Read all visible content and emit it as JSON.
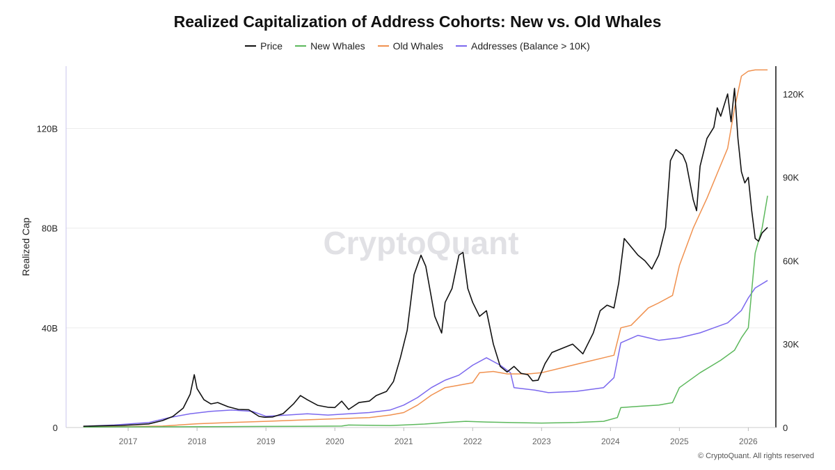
{
  "chart_data": {
    "type": "line",
    "title": "Realized Capitalization of Address Cohorts: New vs. Old Whales",
    "ylabel": "Realized Cap",
    "ylim": [
      0,
      145000000000
    ],
    "y2lim": [
      0,
      130000
    ],
    "y_ticks": [
      {
        "value": 0,
        "label": "0"
      },
      {
        "value": 40000000000,
        "label": "40B"
      },
      {
        "value": 80000000000,
        "label": "80B"
      },
      {
        "value": 120000000000,
        "label": "120B"
      }
    ],
    "y2_ticks": [
      {
        "value": 0,
        "label": "0"
      },
      {
        "value": 30000,
        "label": "30K"
      },
      {
        "value": 60000,
        "label": "60K"
      },
      {
        "value": 90000,
        "label": "90K"
      },
      {
        "value": 120000,
        "label": "120K"
      }
    ],
    "x_range": [
      2016.1,
      2026.4
    ],
    "x_ticks": [
      "2017",
      "2018",
      "2019",
      "2020",
      "2021",
      "2022",
      "2023",
      "2024",
      "2025",
      "2026"
    ],
    "grid": true,
    "legend": "top-center",
    "series": [
      {
        "name": "Price",
        "color": "#111111",
        "axis": "right",
        "x": [
          2016.35,
          2016.6,
          2016.9,
          2017.1,
          2017.3,
          2017.5,
          2017.65,
          2017.8,
          2017.9,
          2017.96,
          2018.0,
          2018.1,
          2018.2,
          2018.3,
          2018.45,
          2018.6,
          2018.75,
          2018.9,
          2018.98,
          2019.1,
          2019.25,
          2019.4,
          2019.5,
          2019.6,
          2019.75,
          2019.9,
          2020.0,
          2020.1,
          2020.2,
          2020.35,
          2020.5,
          2020.6,
          2020.75,
          2020.85,
          2020.95,
          2021.05,
          2021.15,
          2021.25,
          2021.32,
          2021.45,
          2021.55,
          2021.6,
          2021.7,
          2021.8,
          2021.86,
          2021.93,
          2022.0,
          2022.1,
          2022.2,
          2022.3,
          2022.4,
          2022.5,
          2022.6,
          2022.7,
          2022.8,
          2022.87,
          2022.95,
          2023.05,
          2023.15,
          2023.3,
          2023.45,
          2023.6,
          2023.75,
          2023.85,
          2023.95,
          2024.05,
          2024.12,
          2024.2,
          2024.3,
          2024.4,
          2024.5,
          2024.6,
          2024.7,
          2024.8,
          2024.87,
          2024.95,
          2025.05,
          2025.1,
          2025.2,
          2025.25,
          2025.3,
          2025.4,
          2025.5,
          2025.55,
          2025.6,
          2025.7,
          2025.75,
          2025.8,
          2025.85,
          2025.9,
          2025.95,
          2026.0,
          2026.05,
          2026.1,
          2026.15,
          2026.2,
          2026.28
        ],
        "y": [
          450,
          600,
          750,
          1000,
          1300,
          2500,
          4000,
          7000,
          12000,
          19000,
          14000,
          10000,
          8500,
          9000,
          7500,
          6500,
          6400,
          4000,
          3700,
          3800,
          5000,
          8500,
          11500,
          10000,
          8000,
          7300,
          7200,
          9500,
          6500,
          9000,
          9500,
          11500,
          13000,
          16500,
          25000,
          35000,
          55000,
          62000,
          58000,
          40000,
          34000,
          45000,
          50000,
          62000,
          63000,
          50000,
          45000,
          40000,
          42000,
          30000,
          22000,
          20000,
          22000,
          19500,
          19000,
          16800,
          17000,
          23000,
          27000,
          28500,
          30000,
          26500,
          34000,
          42000,
          44000,
          43000,
          52000,
          68000,
          65000,
          62000,
          60000,
          57000,
          62000,
          72000,
          96000,
          100000,
          98000,
          95000,
          82000,
          78000,
          94000,
          104000,
          108000,
          115000,
          112000,
          120000,
          110000,
          122000,
          104000,
          92000,
          88000,
          90000,
          78000,
          68000,
          67000,
          70000,
          72000
        ]
      },
      {
        "name": "New Whales",
        "color": "#5cb85c",
        "axis": "left",
        "x": [
          2016.35,
          2017.5,
          2018.5,
          2019.5,
          2020.1,
          2020.2,
          2020.8,
          2021.0,
          2021.3,
          2021.6,
          2021.9,
          2022.2,
          2022.5,
          2023.0,
          2023.5,
          2023.9,
          2024.1,
          2024.15,
          2024.4,
          2024.7,
          2024.9,
          2025.0,
          2025.3,
          2025.6,
          2025.8,
          2025.9,
          2026.0,
          2026.1,
          2026.2,
          2026.28
        ],
        "y": [
          200000000,
          300000000,
          400000000,
          500000000,
          600000000,
          1000000000,
          800000000,
          1000000000,
          1400000000,
          2000000000,
          2500000000,
          2200000000,
          2000000000,
          1800000000,
          2000000000,
          2500000000,
          4000000000,
          8000000000,
          8500000000,
          9000000000,
          10000000000,
          16000000000,
          22000000000,
          27000000000,
          31000000000,
          36000000000,
          40000000000,
          70000000000,
          80000000000,
          93000000000
        ]
      },
      {
        "name": "Old Whales",
        "color": "#f0914f",
        "axis": "left",
        "x": [
          2016.35,
          2017.0,
          2017.5,
          2018.0,
          2018.5,
          2019.0,
          2019.5,
          2020.0,
          2020.5,
          2020.8,
          2021.0,
          2021.2,
          2021.4,
          2021.6,
          2021.8,
          2022.0,
          2022.1,
          2022.3,
          2022.5,
          2022.8,
          2023.0,
          2023.3,
          2023.6,
          2023.9,
          2024.05,
          2024.15,
          2024.3,
          2024.55,
          2024.7,
          2024.9,
          2025.0,
          2025.2,
          2025.4,
          2025.55,
          2025.7,
          2025.8,
          2025.9,
          2026.0,
          2026.1,
          2026.28
        ],
        "y": [
          300000000,
          400000000,
          600000000,
          1500000000,
          2000000000,
          2500000000,
          3000000000,
          3500000000,
          4000000000,
          5000000000,
          6000000000,
          9000000000,
          13000000000,
          16000000000,
          17000000000,
          18000000000,
          22000000000,
          22500000000,
          21500000000,
          21500000000,
          22000000000,
          24000000000,
          26000000000,
          28000000000,
          29000000000,
          40000000000,
          41000000000,
          48000000000,
          50000000000,
          53000000000,
          65000000000,
          80000000000,
          92000000000,
          102000000000,
          112000000000,
          128000000000,
          141000000000,
          143000000000,
          143500000000,
          143500000000
        ]
      },
      {
        "name": "Addresses (Balance > 10K)",
        "color": "#7b68ee",
        "axis": "left",
        "x": [
          2016.35,
          2016.8,
          2017.3,
          2017.6,
          2017.9,
          2018.2,
          2018.5,
          2018.8,
          2019.0,
          2019.3,
          2019.6,
          2019.9,
          2020.2,
          2020.5,
          2020.8,
          2021.0,
          2021.2,
          2021.4,
          2021.6,
          2021.8,
          2022.0,
          2022.2,
          2022.4,
          2022.55,
          2022.6,
          2022.9,
          2023.1,
          2023.5,
          2023.9,
          2024.05,
          2024.15,
          2024.4,
          2024.55,
          2024.7,
          2025.0,
          2025.3,
          2025.5,
          2025.7,
          2025.9,
          2026.0,
          2026.1,
          2026.28
        ],
        "y": [
          500000000,
          1000000000,
          2000000000,
          4000000000,
          5500000000,
          6500000000,
          7000000000,
          6500000000,
          4500000000,
          5000000000,
          5500000000,
          5000000000,
          5500000000,
          6000000000,
          7000000000,
          9000000000,
          12000000000,
          16000000000,
          19000000000,
          21000000000,
          25000000000,
          28000000000,
          25000000000,
          22000000000,
          16000000000,
          15000000000,
          14000000000,
          14500000000,
          16000000000,
          20000000000,
          34000000000,
          37000000000,
          36000000000,
          35000000000,
          36000000000,
          38000000000,
          40000000000,
          42000000000,
          47000000000,
          52000000000,
          56000000000,
          59000000000
        ]
      }
    ]
  },
  "watermark": "CryptoQuant",
  "footer": "© CryptoQuant. All rights reserved"
}
